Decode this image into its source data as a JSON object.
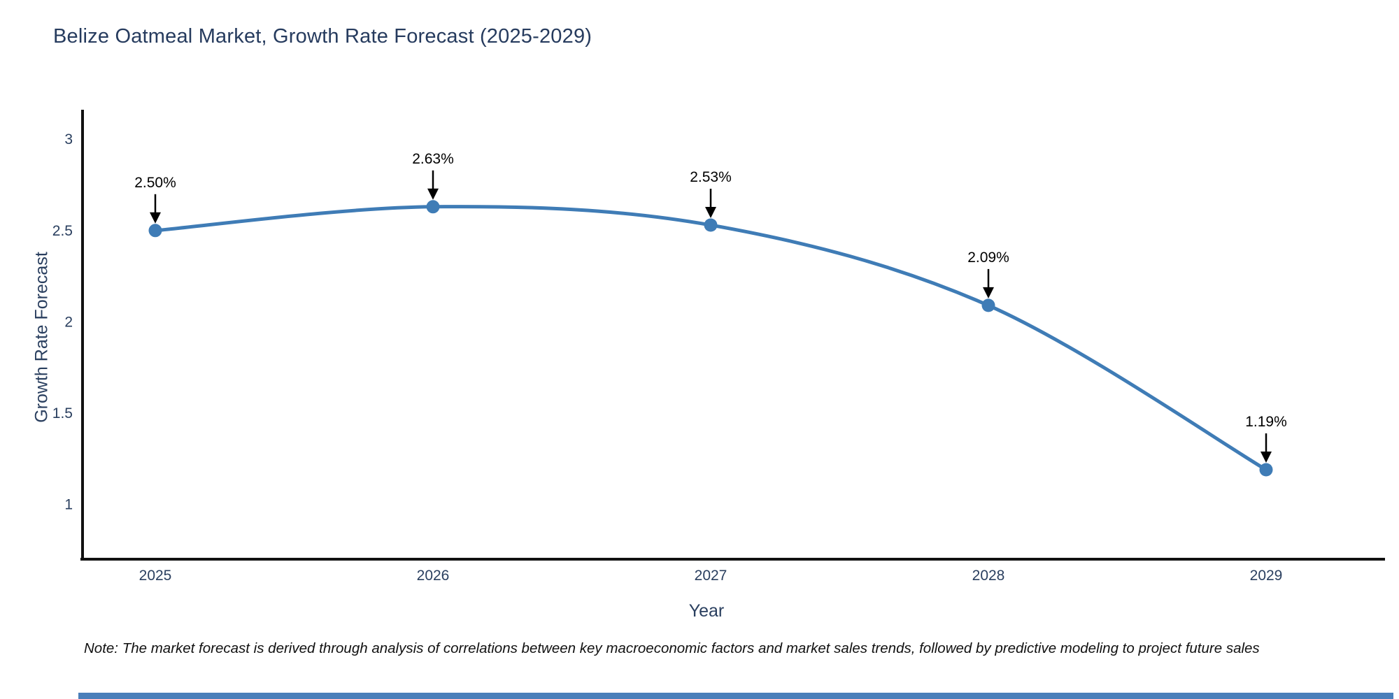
{
  "title": "Belize Oatmeal Market, Growth Rate Forecast (2025-2029)",
  "note": "Note: The market forecast is derived through analysis of correlations between key macroeconomic factors and market sales trends, followed by predictive modeling to project future sales",
  "chart_data": {
    "type": "line",
    "title": "Belize Oatmeal Market, Growth Rate Forecast (2025-2029)",
    "xlabel": "Year",
    "ylabel": "Growth Rate Forecast",
    "x": [
      2025,
      2026,
      2027,
      2028,
      2029
    ],
    "values": [
      2.5,
      2.63,
      2.53,
      2.09,
      1.19
    ],
    "point_labels": [
      "2.50%",
      "2.63%",
      "2.53%",
      "2.09%",
      "1.19%"
    ],
    "x_tick_labels": [
      "2025",
      "2026",
      "2027",
      "2028",
      "2029"
    ],
    "y_ticks": [
      1,
      1.5,
      2,
      2.5,
      3
    ],
    "y_tick_labels": [
      "1",
      "1.5",
      "2",
      "2.5",
      "3"
    ],
    "ylim": [
      0.7,
      3.15
    ],
    "curve": "spline",
    "grid": false,
    "legend": false,
    "marker_style": "circle",
    "annotation_arrows": true,
    "line_color": "#3f7cb6",
    "marker_color": "#3f7cb6",
    "axis_line_color": "#111111",
    "annotation_color": "#000000"
  },
  "colors": {
    "title": "#263b5e",
    "tick_labels": "#2a3f5f",
    "background": "#ffffff",
    "footer_bar": "#4a7fba"
  }
}
